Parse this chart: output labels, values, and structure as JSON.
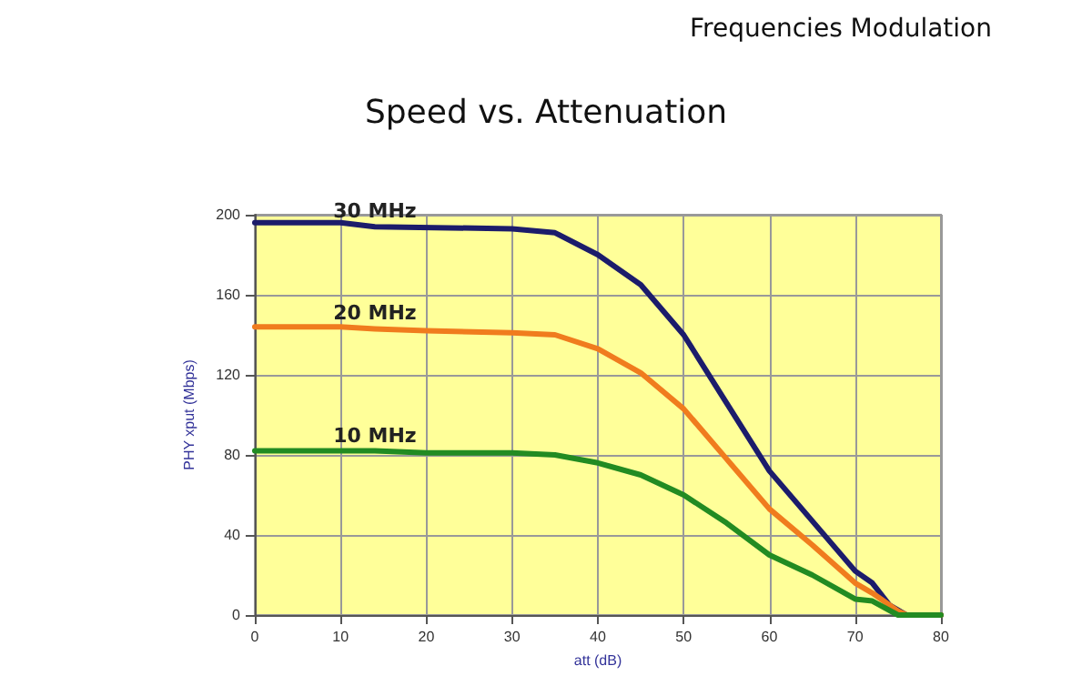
{
  "chart_data": {
    "type": "line",
    "title": "Speed vs. Attenuation",
    "annotations": [
      "Frequencies Modulation"
    ],
    "xlabel": "att (dB)",
    "ylabel": "PHY xput (Mbps)",
    "xlim": [
      0,
      80
    ],
    "xticks": [
      0,
      10,
      20,
      30,
      40,
      50,
      60,
      70,
      80
    ],
    "ylim": [
      0,
      200
    ],
    "yticks": [
      0,
      40,
      80,
      120,
      160,
      200
    ],
    "grid": true,
    "legend": false,
    "marker": "none",
    "line_style": "solid",
    "series": [
      {
        "name": "30 MHz",
        "color": "#1c1c6b",
        "x": [
          0,
          10,
          14,
          30,
          35,
          40,
          45,
          50,
          55,
          60,
          65,
          70,
          72,
          74,
          76,
          80
        ],
        "values": [
          196,
          196,
          194,
          193,
          191,
          180,
          165,
          140,
          106,
          72,
          47,
          22,
          16,
          5,
          0,
          0
        ]
      },
      {
        "name": "20 MHz",
        "color": "#f07c1e",
        "x": [
          0,
          10,
          14,
          20,
          30,
          35,
          40,
          45,
          50,
          55,
          60,
          65,
          70,
          72,
          75,
          76,
          80
        ],
        "values": [
          144,
          144,
          143,
          142,
          141,
          140,
          133,
          121,
          103,
          78,
          53,
          35,
          16,
          11,
          2,
          0,
          0
        ]
      },
      {
        "name": "10 MHz",
        "color": "#228b22",
        "x": [
          0,
          10,
          14,
          20,
          30,
          35,
          40,
          45,
          50,
          55,
          60,
          65,
          70,
          72,
          75,
          80
        ],
        "values": [
          82,
          82,
          82,
          81,
          81,
          80,
          76,
          70,
          60,
          46,
          30,
          20,
          8,
          7,
          0,
          0
        ]
      }
    ]
  }
}
